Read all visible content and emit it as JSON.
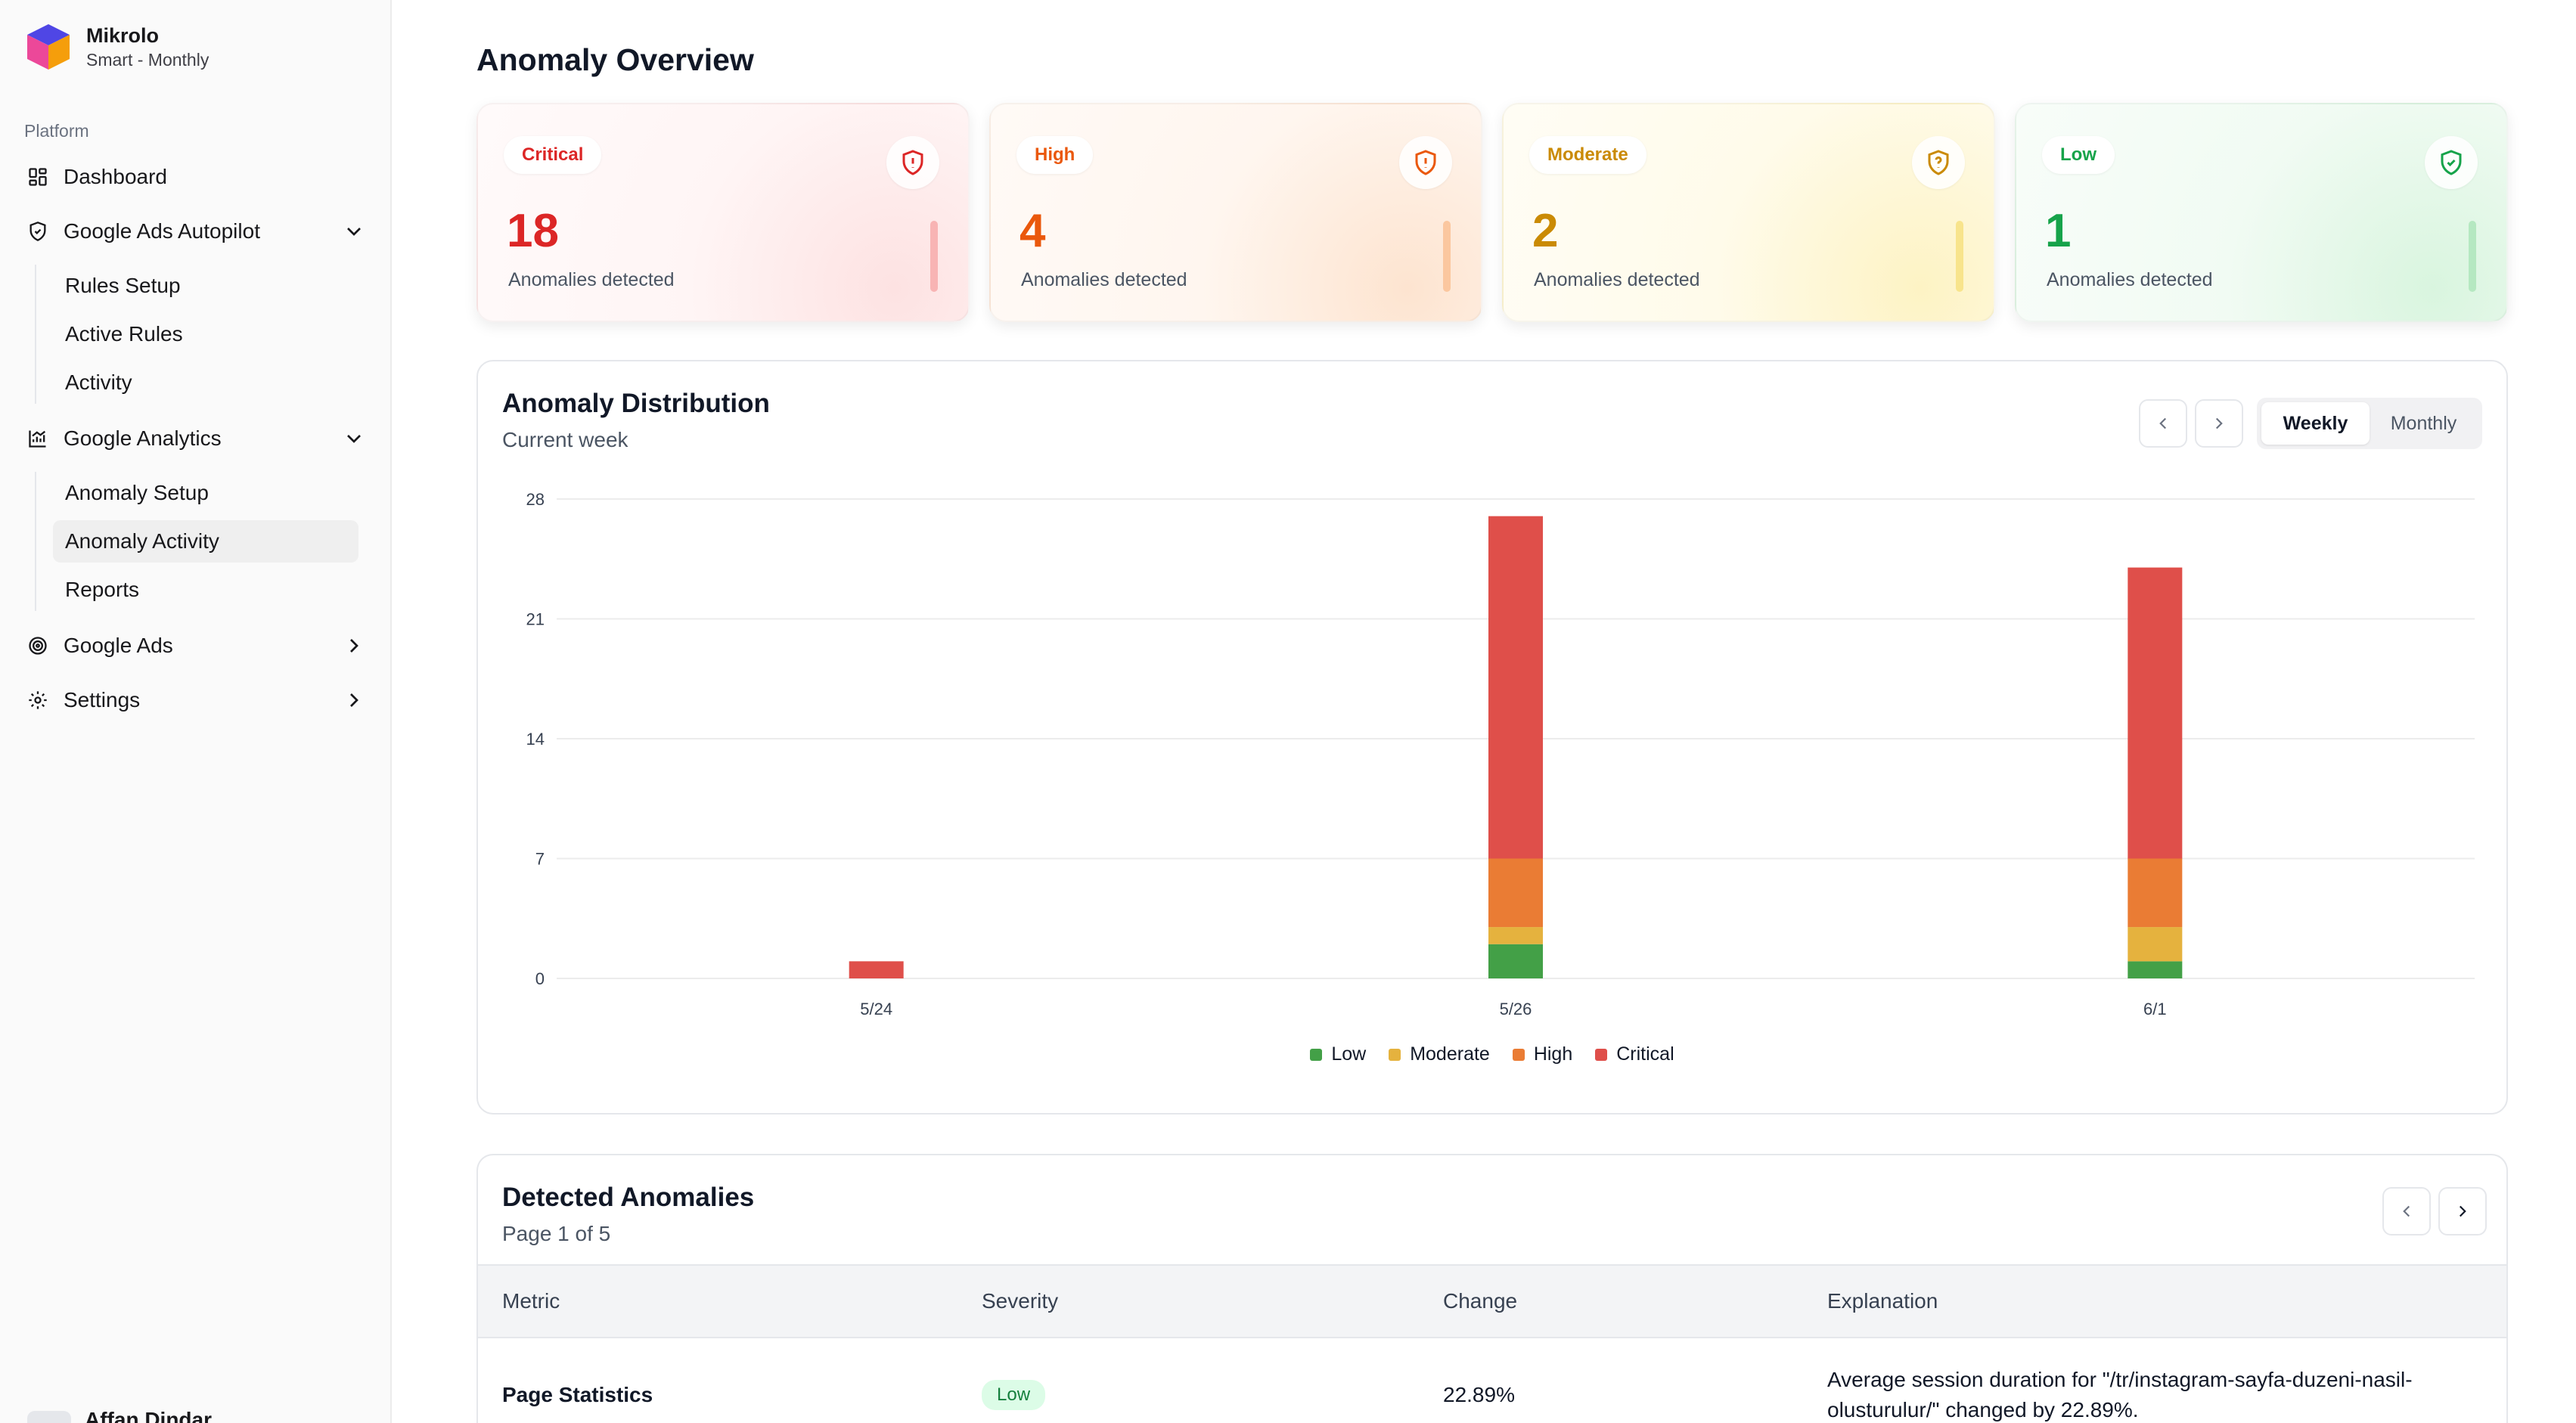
{
  "brand": {
    "name": "Mikrolo",
    "plan": "Smart - Monthly"
  },
  "sidebar": {
    "section_label": "Platform",
    "dashboard": "Dashboard",
    "ads_autopilot": {
      "label": "Google Ads Autopilot",
      "items": [
        "Rules Setup",
        "Active Rules",
        "Activity"
      ]
    },
    "analytics": {
      "label": "Google Analytics",
      "items": [
        "Anomaly Setup",
        "Anomaly Activity",
        "Reports"
      ]
    },
    "google_ads": "Google Ads",
    "settings": "Settings",
    "user_name": "Affan Dindar"
  },
  "page": {
    "title": "Anomaly Overview"
  },
  "cards": [
    {
      "badge": "Critical",
      "count": "18",
      "label": "Anomalies detected",
      "color": "#dc2626"
    },
    {
      "badge": "High",
      "count": "4",
      "label": "Anomalies detected",
      "color": "#ea580c"
    },
    {
      "badge": "Moderate",
      "count": "2",
      "label": "Anomalies detected",
      "color": "#ca8a04"
    },
    {
      "badge": "Low",
      "count": "1",
      "label": "Anomalies detected",
      "color": "#16a34a"
    }
  ],
  "distribution": {
    "title": "Anomaly Distribution",
    "subtitle": "Current week",
    "toggle": {
      "weekly": "Weekly",
      "monthly": "Monthly",
      "selected": "Weekly"
    }
  },
  "chart_data": {
    "type": "bar",
    "stacked": true,
    "categories": [
      "5/24",
      "5/26",
      "6/1"
    ],
    "series": [
      {
        "name": "Low",
        "color": "#43a047",
        "values": [
          0,
          2,
          1
        ]
      },
      {
        "name": "Moderate",
        "color": "#e5b23e",
        "values": [
          0,
          1,
          2
        ]
      },
      {
        "name": "High",
        "color": "#ea7c34",
        "values": [
          0,
          4,
          4
        ]
      },
      {
        "name": "Critical",
        "color": "#df4f4a",
        "values": [
          1,
          20,
          17
        ]
      }
    ],
    "yticks": [
      0,
      7,
      14,
      21,
      28
    ],
    "ylim": [
      0,
      28
    ],
    "grid": true,
    "legend_position": "bottom"
  },
  "anomalies": {
    "title": "Detected Anomalies",
    "page_info": "Page 1 of 5",
    "columns": [
      "Metric",
      "Severity",
      "Change",
      "Explanation"
    ],
    "rows": [
      {
        "metric": "Page Statistics",
        "severity": "Low",
        "change": "22.89%",
        "explanation_line1": "Average session duration for \"/tr/instagram-sayfa-duzeni-nasil-",
        "explanation_line2": "olusturulur/\" changed by 22.89%."
      }
    ]
  }
}
